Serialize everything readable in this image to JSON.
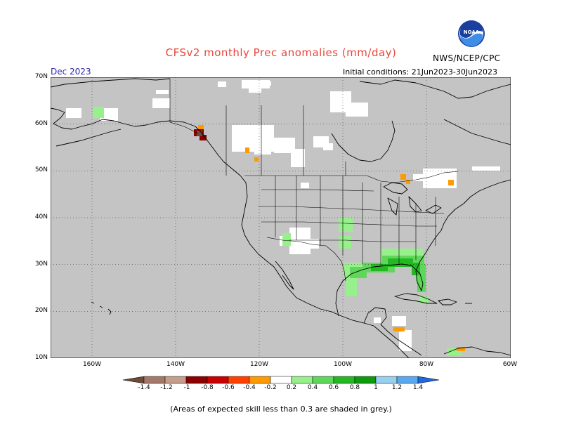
{
  "header": {
    "title": "CFSv2 monthly Prec anomalies (mm/day)",
    "agency": "NWS/NCEP/CPC",
    "logo_text": "NOAA",
    "month": "Dec 2023",
    "initial_conditions": "Initial conditions: 21Jun2023-30Jun2023"
  },
  "map": {
    "lat_labels": [
      "70N",
      "60N",
      "50N",
      "40N",
      "30N",
      "20N",
      "10N"
    ],
    "lon_labels": [
      "160W",
      "140W",
      "120W",
      "100W",
      "80W",
      "60W"
    ],
    "background_color": "#c4c4c4"
  },
  "colorbar": {
    "labels": [
      "-1.4",
      "-1.2",
      "-1",
      "-0.8",
      "-0.6",
      "-0.4",
      "-0.2",
      "0.2",
      "0.4",
      "0.6",
      "0.8",
      "1",
      "1.2",
      "1.4"
    ],
    "colors": [
      "#6e4a3a",
      "#a5796a",
      "#c69c8a",
      "#8c0000",
      "#c80000",
      "#ff4000",
      "#ff9a00",
      "#ffffff",
      "#98f08c",
      "#5fd75a",
      "#25b825",
      "#0d9a0d",
      "#98d0f0",
      "#5aa8f0",
      "#2068e0"
    ]
  },
  "footnote": "(Areas of expected skill less than 0.3 are shaded in grey.)"
}
